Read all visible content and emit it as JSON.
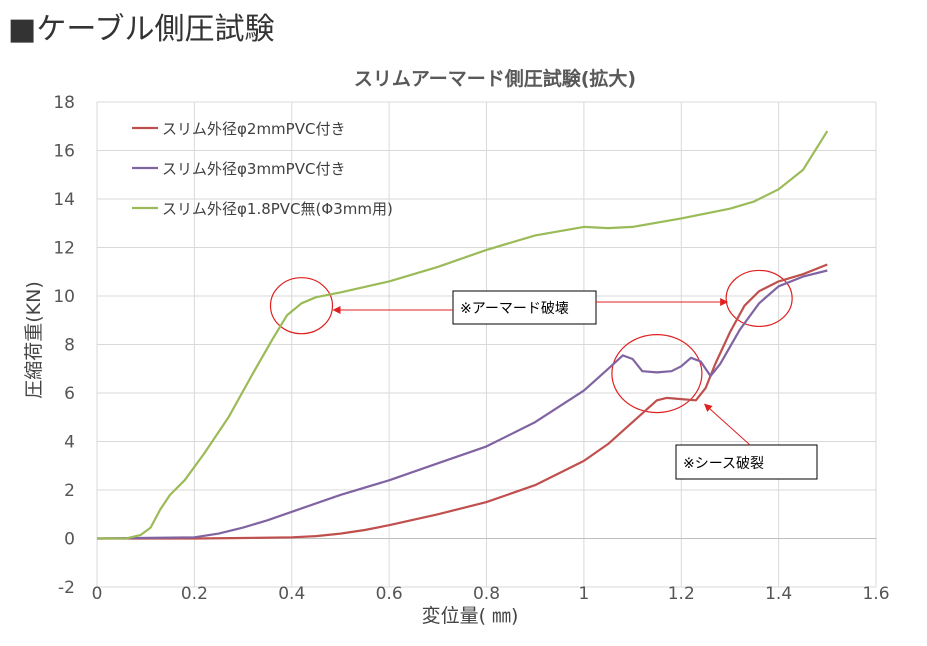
{
  "page": {
    "heading": "■ケーブル側圧試験"
  },
  "chart_data": {
    "type": "line",
    "title": "スリムアーマード側圧試験(拡大)",
    "xlabel": "変位量( ㎜)",
    "ylabel": "圧縮荷重(KN)",
    "xlim": [
      0,
      1.6
    ],
    "ylim": [
      -2,
      18
    ],
    "x_ticks": [
      "0",
      "0.2",
      "0.4",
      "0.6",
      "0.8",
      "1",
      "1.2",
      "1.4",
      "1.6"
    ],
    "y_ticks": [
      "-2",
      "0",
      "2",
      "4",
      "6",
      "8",
      "10",
      "12",
      "14",
      "16",
      "18"
    ],
    "grid": true,
    "legend_position": "top-left",
    "series": [
      {
        "name": "スリム外径φ2mmPVC付き",
        "color": "#c0504d",
        "points": [
          [
            0,
            0
          ],
          [
            0.2,
            0
          ],
          [
            0.3,
            0.02
          ],
          [
            0.4,
            0.05
          ],
          [
            0.45,
            0.1
          ],
          [
            0.5,
            0.2
          ],
          [
            0.55,
            0.35
          ],
          [
            0.6,
            0.55
          ],
          [
            0.7,
            1
          ],
          [
            0.8,
            1.5
          ],
          [
            0.9,
            2.2
          ],
          [
            1.0,
            3.2
          ],
          [
            1.05,
            3.9
          ],
          [
            1.1,
            4.8
          ],
          [
            1.15,
            5.7
          ],
          [
            1.17,
            5.8
          ],
          [
            1.2,
            5.75
          ],
          [
            1.23,
            5.7
          ],
          [
            1.25,
            6.2
          ],
          [
            1.27,
            7.2
          ],
          [
            1.3,
            8.5
          ],
          [
            1.33,
            9.6
          ],
          [
            1.36,
            10.2
          ],
          [
            1.4,
            10.6
          ],
          [
            1.45,
            10.9
          ],
          [
            1.5,
            11.3
          ]
        ]
      },
      {
        "name": "スリム外径φ3mmPVC付き",
        "color": "#8064a2",
        "points": [
          [
            0,
            0
          ],
          [
            0.2,
            0.05
          ],
          [
            0.25,
            0.2
          ],
          [
            0.3,
            0.45
          ],
          [
            0.35,
            0.75
          ],
          [
            0.4,
            1.1
          ],
          [
            0.5,
            1.8
          ],
          [
            0.6,
            2.4
          ],
          [
            0.7,
            3.1
          ],
          [
            0.8,
            3.8
          ],
          [
            0.9,
            4.8
          ],
          [
            1.0,
            6.1
          ],
          [
            1.05,
            7.0
          ],
          [
            1.08,
            7.55
          ],
          [
            1.1,
            7.4
          ],
          [
            1.12,
            6.9
          ],
          [
            1.15,
            6.85
          ],
          [
            1.18,
            6.9
          ],
          [
            1.2,
            7.1
          ],
          [
            1.22,
            7.45
          ],
          [
            1.24,
            7.3
          ],
          [
            1.26,
            6.7
          ],
          [
            1.28,
            7.2
          ],
          [
            1.32,
            8.6
          ],
          [
            1.36,
            9.7
          ],
          [
            1.4,
            10.4
          ],
          [
            1.45,
            10.8
          ],
          [
            1.5,
            11.05
          ]
        ]
      },
      {
        "name": "スリム外径φ1.8PVC無(Φ3mm用)",
        "color": "#9bbb59",
        "points": [
          [
            0,
            0
          ],
          [
            0.06,
            0
          ],
          [
            0.09,
            0.15
          ],
          [
            0.11,
            0.45
          ],
          [
            0.13,
            1.2
          ],
          [
            0.15,
            1.8
          ],
          [
            0.18,
            2.4
          ],
          [
            0.22,
            3.5
          ],
          [
            0.27,
            5.0
          ],
          [
            0.32,
            6.8
          ],
          [
            0.36,
            8.2
          ],
          [
            0.39,
            9.2
          ],
          [
            0.42,
            9.7
          ],
          [
            0.45,
            9.95
          ],
          [
            0.5,
            10.15
          ],
          [
            0.6,
            10.6
          ],
          [
            0.7,
            11.2
          ],
          [
            0.8,
            11.9
          ],
          [
            0.9,
            12.5
          ],
          [
            1.0,
            12.85
          ],
          [
            1.05,
            12.8
          ],
          [
            1.1,
            12.85
          ],
          [
            1.2,
            13.2
          ],
          [
            1.3,
            13.6
          ],
          [
            1.35,
            13.9
          ],
          [
            1.4,
            14.4
          ],
          [
            1.45,
            15.2
          ],
          [
            1.5,
            16.8
          ]
        ]
      }
    ],
    "annotations": [
      {
        "text": "※アーマード破壊",
        "points_to": [
          [
            0.42,
            9.6
          ],
          [
            1.36,
            9.9
          ]
        ]
      },
      {
        "text": "※シース破裂",
        "points_to": [
          [
            1.24,
            5.7
          ]
        ]
      }
    ],
    "highlight_circles": [
      {
        "center": [
          0.42,
          9.6
        ],
        "label": "armor-failure-circle-green"
      },
      {
        "center": [
          1.36,
          9.9
        ],
        "label": "armor-failure-circle-red"
      },
      {
        "center": [
          1.15,
          6.8
        ],
        "label": "sheath-burst-circle"
      }
    ]
  }
}
